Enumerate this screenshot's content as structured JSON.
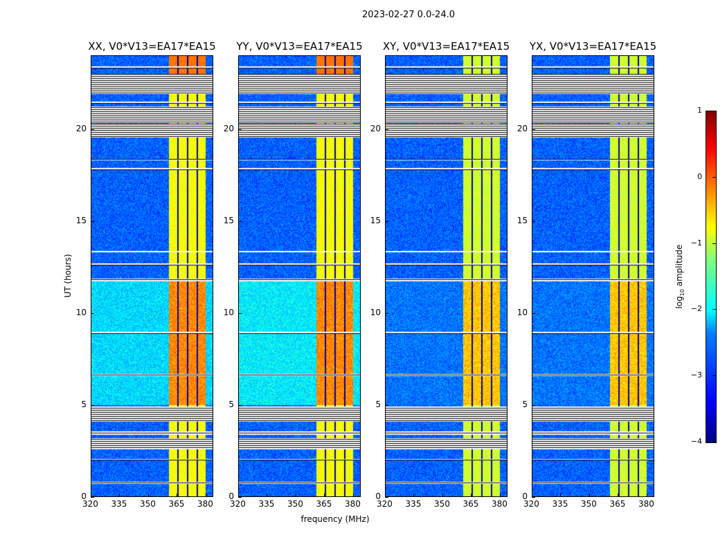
{
  "chart_data": {
    "type": "heatmap",
    "title": "2023-02-27 0.0-24.0",
    "xlabel": "frequency (MHz)",
    "ylabel": "UT (hours)",
    "xlim": [
      320,
      384
    ],
    "ylim": [
      0,
      24
    ],
    "xticks": [
      320,
      335,
      350,
      365,
      380
    ],
    "xtick_labels": [
      "320",
      "335",
      "350",
      "365",
      "380"
    ],
    "yticks": [
      0,
      5,
      10,
      15,
      20
    ],
    "ytick_labels": [
      "0",
      "5",
      "10",
      "15",
      "20"
    ],
    "panels": [
      {
        "title": "XX, V0*V13=EA17*EA15",
        "pol": "XX",
        "bg_low": -2.3,
        "bg_high": -2.9
      },
      {
        "title": "YY, V0*V13=EA17*EA15",
        "pol": "YY",
        "bg_low": -2.2,
        "bg_high": -2.9
      },
      {
        "title": "XY, V0*V13=EA17*EA15",
        "pol": "XY",
        "bg_low": -2.8,
        "bg_high": -2.9
      },
      {
        "title": "YX, V0*V13=EA17*EA15",
        "pol": "YX",
        "bg_low": -2.8,
        "bg_high": -2.9
      }
    ],
    "rfi_band_mhz": [
      360.5,
      380
    ],
    "rfi_gap_lines_mhz": [
      365.5,
      370.3,
      375.5
    ],
    "flagged_hours": [
      [
        0.72,
        0.85
      ],
      [
        2.0,
        2.1
      ],
      [
        2.6,
        3.2
      ],
      [
        3.4,
        3.6
      ],
      [
        4.1,
        4.95
      ],
      [
        6.6,
        6.7
      ],
      [
        8.9,
        9.0
      ],
      [
        11.75,
        11.9
      ],
      [
        12.6,
        12.7
      ],
      [
        13.3,
        13.4
      ],
      [
        17.8,
        17.9
      ],
      [
        18.3,
        18.4
      ],
      [
        19.55,
        20.3
      ],
      [
        20.35,
        21.25
      ],
      [
        21.4,
        21.5
      ],
      [
        21.9,
        23.0
      ],
      [
        23.3,
        23.4
      ]
    ],
    "colorbar": {
      "label_prefix": "log",
      "label_sub": "10",
      "label_suffix": " amplitude",
      "range": [
        -4,
        1
      ],
      "ticks": [
        1,
        0,
        -1,
        -2,
        -3,
        -4
      ],
      "tick_labels": [
        "1",
        "0",
        "−1",
        "−2",
        "−3",
        "−4"
      ],
      "colormap": "jet"
    }
  }
}
